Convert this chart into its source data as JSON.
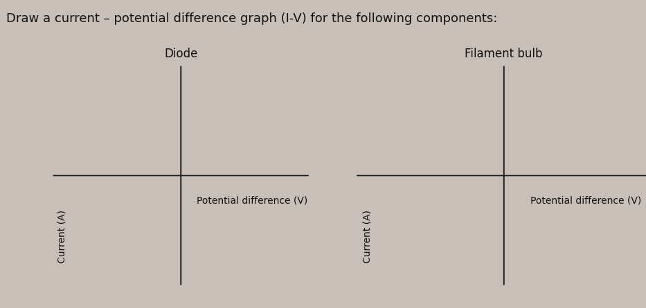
{
  "title": "Draw a current – potential difference graph (I-V) for the following components:",
  "title_fontsize": 13,
  "background_color": "#c8c0b8",
  "panel_background": "#c8c0b8",
  "left_label": "Diode",
  "right_label": "Filament bulb",
  "xlabel": "Potential difference (V)",
  "ylabel": "Current (A)",
  "axis_color": "#222222",
  "text_color": "#111111",
  "figsize": [
    9.33,
    4.46
  ]
}
